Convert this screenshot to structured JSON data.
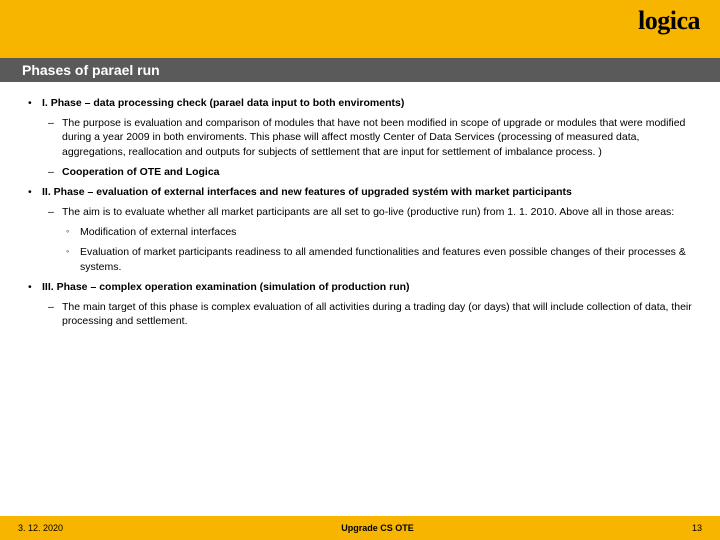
{
  "colors": {
    "brand_yellow": "#f7b500",
    "title_bar_bg": "#5a5a5a",
    "title_bar_fg": "#ffffff",
    "body_bg": "#ffffff",
    "text": "#000000"
  },
  "logo": {
    "text": "logica"
  },
  "title": "Phases of parael run",
  "phase1": {
    "heading": "I. Phase – data processing check (parael data input to both enviroments)",
    "desc": "The purpose is evaluation and comparison of modules that have not been modified in scope of upgrade or modules that were modified during a year 2009 in both enviroments. This phase will affect mostly Center of Data Services (processing of measured data, aggregations, reallocation and outputs for subjects of settlement that are input for settlement of imbalance process. )",
    "coop": "Cooperation of OTE and Logica"
  },
  "phase2": {
    "heading": "II. Phase – evaluation of external interfaces and new features of upgraded systém with market participants",
    "desc": "The aim is to evaluate whether all market participants are all set to go-live (productive run) from 1. 1. 2010. Above all in those areas:",
    "sub1": "Modification of external interfaces",
    "sub2": "Evaluation of market participants readiness to all amended functionalities and features even possible changes of their processes & systems."
  },
  "phase3": {
    "heading": "III. Phase – complex operation examination (simulation of production run)",
    "desc": "The main target of this phase is complex evaluation of all activities during a trading day (or days) that will include collection of data, their processing and settlement."
  },
  "footer": {
    "date": "3. 12. 2020",
    "center": "Upgrade CS OTE",
    "page": "13"
  }
}
